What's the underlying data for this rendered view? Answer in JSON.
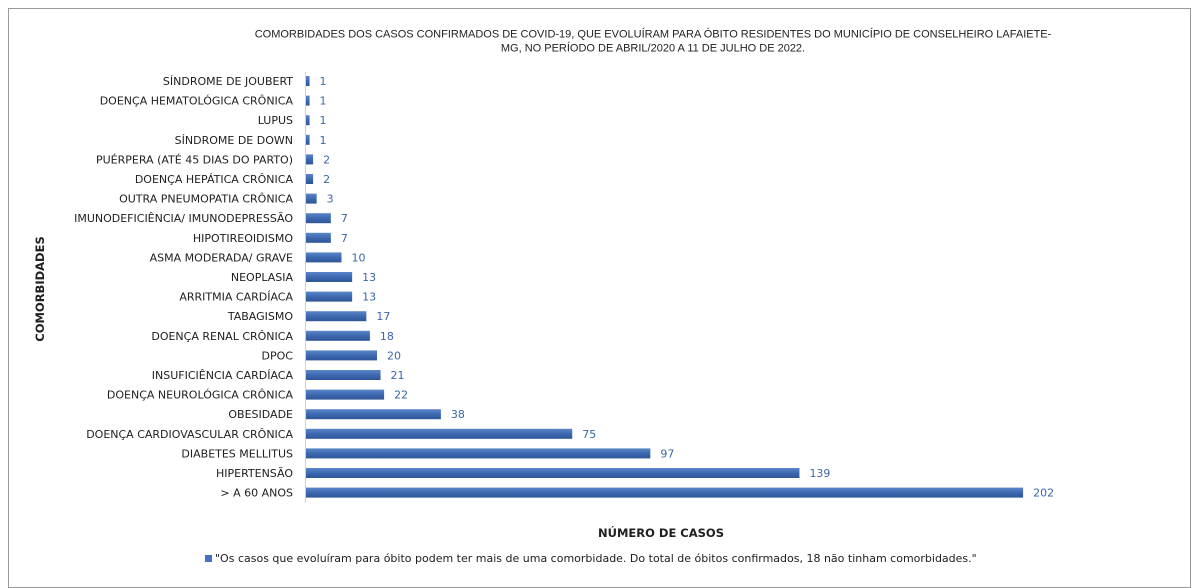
{
  "chart_data": {
    "type": "bar",
    "orientation": "horizontal",
    "title_lines": [
      "COMORBIDADES  DOS CASOS CONFIRMADOS  DE COVID-19, QUE EVOLUÍRAM  PARA ÓBITO  RESIDENTES DO MUNICÍPIO DE CONSELHEIRO  LAFAIETE-",
      "MG, NO PERÍODO DE ABRIL/2020 A 11 DE JULHO DE 2022."
    ],
    "xlabel": "NÚMERO DE CASOS",
    "ylabel": "COMORBIDADES",
    "categories": [
      "SÍNDROME DE JOUBERT",
      "DOENÇA HEMATOLÓGICA CRÔNICA",
      "LUPUS",
      "SÍNDROME DE DOWN",
      "PUÉRPERA (ATÉ 45 DIAS DO PARTO)",
      "DOENÇA HEPÁTICA CRÔNICA",
      "OUTRA PNEUMOPATIA CRÔNICA",
      "IMUNODEFICIÊNCIA/ IMUNODEPRESSÃO",
      "HIPOTIREOIDISMO",
      "ASMA MODERADA/ GRAVE",
      "NEOPLASIA",
      "ARRITMIA CARDÍACA",
      "TABAGISMO",
      "DOENÇA RENAL CRÔNICA",
      "DPOC",
      "INSUFICIÊNCIA CARDÍACA",
      "DOENÇA NEUROLÓGICA CRÔNICA",
      "OBESIDADE",
      "DOENÇA CARDIOVASCULAR CRÔNICA",
      "DIABETES MELLITUS",
      "HIPERTENSÃO",
      "> A 60 ANOS"
    ],
    "series": [
      {
        "name": "\"Os casos que evoluíram para óbito podem ter mais de uma comorbidade. Do total de óbitos confirmados, 18 não tinham comorbidades.\"",
        "values": [
          1,
          1,
          1,
          1,
          2,
          2,
          3,
          7,
          7,
          10,
          13,
          13,
          17,
          18,
          20,
          21,
          22,
          38,
          75,
          97,
          139,
          202
        ]
      }
    ],
    "xlim": [
      0,
      210
    ],
    "grid": false,
    "legend_position": "bottom",
    "bar_color": "#4472c4"
  }
}
